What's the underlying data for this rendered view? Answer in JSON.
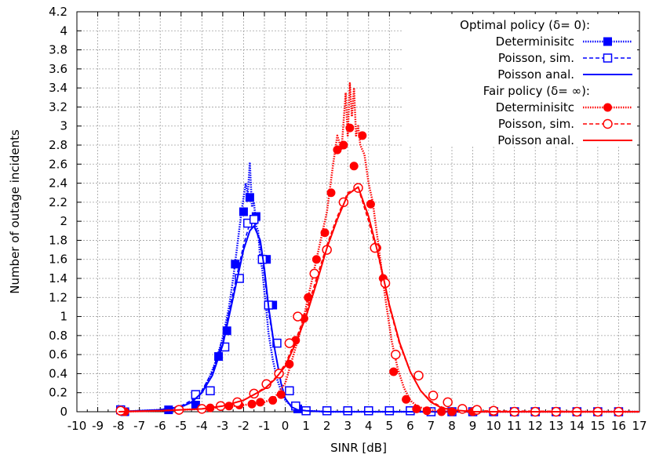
{
  "chart_data": {
    "type": "line",
    "title": "",
    "xlabel": "SINR [dB]",
    "ylabel": "Number of outage incidents",
    "xlim": [
      -10,
      17
    ],
    "ylim": [
      0,
      4.2
    ],
    "x_ticks": [
      -10,
      -9,
      -8,
      -7,
      -6,
      -5,
      -4,
      -3,
      -2,
      -1,
      0,
      1,
      2,
      3,
      4,
      5,
      6,
      7,
      8,
      9,
      10,
      11,
      12,
      13,
      14,
      15,
      16,
      17
    ],
    "y_ticks": [
      0,
      0.2,
      0.4,
      0.6,
      0.8,
      1,
      1.2,
      1.4,
      1.6,
      1.8,
      2,
      2.2,
      2.4,
      2.6,
      2.8,
      3,
      3.2,
      3.4,
      3.6,
      3.8,
      4,
      4.2
    ],
    "y_tick_labels": [
      "0",
      "0.2",
      "0.4",
      "0.6",
      "0.8",
      "1",
      "1.2",
      "1.4",
      "1.6",
      "1.8",
      "2",
      "2.2",
      "2.4",
      "2.6",
      "2.8",
      "3",
      "3.2",
      "3.4",
      "3.6",
      "3.8",
      "4",
      "4.2"
    ],
    "grid": true,
    "legend_position": "top-right",
    "legend_headers": [
      "Optimal policy (δ= 0):",
      "Fair policy (δ= ∞):"
    ],
    "series": [
      {
        "name": "Determinisitc",
        "group": "optimal",
        "color": "#0000ff",
        "line_style": "dotted",
        "marker": "filled-square",
        "x": [
          -7.7,
          -5.6,
          -4.3,
          -3.6,
          -3.2,
          -2.8,
          -2.4,
          -2.0,
          -1.7,
          -1.4,
          -0.9,
          -0.6,
          0.2,
          0.6,
          1.0,
          2.0,
          3.0,
          4.0,
          5.0,
          6.0,
          7.0,
          8.0,
          9.0,
          10.0,
          11.0,
          12.0,
          13.0,
          14.0,
          15.0,
          16.0
        ],
        "y": [
          0,
          0.02,
          0.07,
          0.22,
          0.58,
          0.85,
          1.55,
          2.1,
          2.25,
          2.05,
          1.6,
          1.12,
          0.22,
          0.03,
          0.01,
          0.01,
          0.01,
          0.01,
          0.01,
          0.01,
          0,
          0,
          0,
          0,
          0,
          0,
          0,
          0,
          0,
          0
        ],
        "line_x": [
          -8,
          -7,
          -6,
          -5,
          -4.5,
          -4,
          -3.6,
          -3.3,
          -3,
          -2.7,
          -2.5,
          -2.3,
          -2.1,
          -1.9,
          -1.8,
          -1.7,
          -1.6,
          -1.5,
          -1.4,
          -1.3,
          -1.2,
          -1.1,
          -1,
          -0.9,
          -0.8,
          -0.6,
          -0.4,
          -0.2,
          0,
          0.3,
          0.6,
          1,
          2,
          4,
          8,
          17
        ],
        "line_y": [
          0,
          0.01,
          0.02,
          0.05,
          0.1,
          0.2,
          0.38,
          0.55,
          0.78,
          1.1,
          1.4,
          1.75,
          2.1,
          2.4,
          2.28,
          2.62,
          2.15,
          2.2,
          1.95,
          1.9,
          1.6,
          1.5,
          1.25,
          1.05,
          0.82,
          0.55,
          0.35,
          0.22,
          0.12,
          0.06,
          0.03,
          0.01,
          0,
          0,
          0,
          0
        ]
      },
      {
        "name": "Poisson, sim.",
        "group": "optimal",
        "color": "#0000ff",
        "line_style": "dashed",
        "marker": "open-square",
        "x": [
          -7.9,
          -4.3,
          -3.6,
          -2.9,
          -2.2,
          -1.8,
          -1.5,
          -1.1,
          -0.8,
          -0.4,
          0.2,
          0.5,
          1.0,
          2.0,
          3.0,
          4.0,
          5.0,
          6.0,
          7.0,
          8.0,
          9.0,
          10.0,
          11.0,
          12.0,
          13.0,
          14.0,
          15.0,
          16.0
        ],
        "y": [
          0.02,
          0.18,
          0.22,
          0.68,
          1.4,
          1.98,
          2.02,
          1.6,
          1.12,
          0.72,
          0.22,
          0.06,
          0.01,
          0.01,
          0.01,
          0.01,
          0.01,
          0.01,
          0,
          0,
          0,
          0,
          0,
          0,
          0,
          0,
          0,
          0
        ],
        "line_x": [
          -8,
          -7,
          -6,
          -5,
          -4.5,
          -4,
          -3.5,
          -3,
          -2.5,
          -2,
          -1.7,
          -1.5,
          -1.2,
          -1,
          -0.8,
          -0.5,
          -0.2,
          0,
          0.3,
          0.6,
          1,
          2,
          4,
          8,
          17
        ],
        "line_y": [
          0,
          0.01,
          0.02,
          0.06,
          0.12,
          0.22,
          0.42,
          0.75,
          1.25,
          1.75,
          1.98,
          2.0,
          1.75,
          1.45,
          1.05,
          0.65,
          0.3,
          0.14,
          0.05,
          0.02,
          0.01,
          0,
          0,
          0,
          0
        ]
      },
      {
        "name": "Poisson anal.",
        "group": "optimal",
        "color": "#0000ff",
        "line_style": "solid",
        "marker": "none",
        "x": [
          -8,
          -7,
          -6,
          -5,
          -4.5,
          -4,
          -3.5,
          -3,
          -2.5,
          -2,
          -1.7,
          -1.5,
          -1.2,
          -1,
          -0.8,
          -0.5,
          -0.2,
          0,
          0.3,
          0.6,
          1,
          2,
          4,
          8,
          17
        ],
        "y": [
          0,
          0.01,
          0.02,
          0.05,
          0.1,
          0.2,
          0.38,
          0.7,
          1.2,
          1.7,
          1.9,
          1.95,
          1.8,
          1.5,
          1.1,
          0.65,
          0.3,
          0.14,
          0.05,
          0.02,
          0.01,
          0,
          0,
          0,
          0
        ]
      },
      {
        "name": "Determinisitc",
        "group": "fair",
        "color": "#ff0000",
        "line_style": "dotted",
        "marker": "filled-circle",
        "x": [
          -7.7,
          -3.6,
          -2.7,
          -2.2,
          -1.6,
          -1.2,
          -0.6,
          -0.2,
          0.2,
          0.5,
          0.9,
          1.1,
          1.5,
          1.9,
          2.2,
          2.5,
          2.8,
          3.1,
          3.3,
          3.7,
          4.1,
          4.4,
          4.7,
          5.2,
          5.8,
          6.3,
          6.8,
          7.5,
          8.0,
          9.0,
          10.0,
          11.0,
          12.0,
          13.0,
          14.0,
          15.0,
          16.0
        ],
        "y": [
          0,
          0.04,
          0.06,
          0.07,
          0.08,
          0.1,
          0.12,
          0.18,
          0.5,
          0.75,
          0.98,
          1.2,
          1.6,
          1.88,
          2.3,
          2.75,
          2.8,
          2.98,
          2.58,
          2.9,
          2.18,
          1.72,
          1.4,
          0.42,
          0.13,
          0.03,
          0.01,
          0,
          0,
          0,
          0,
          0,
          0,
          0,
          0,
          0,
          0
        ],
        "line_x": [
          -8,
          -6,
          -4,
          -3,
          -2,
          -1,
          -0.5,
          0,
          0.4,
          0.8,
          1.2,
          1.6,
          2,
          2.3,
          2.5,
          2.7,
          2.9,
          3,
          3.1,
          3.2,
          3.3,
          3.4,
          3.5,
          3.6,
          3.8,
          4,
          4.2,
          4.5,
          4.8,
          5.1,
          5.4,
          5.7,
          6,
          6.3,
          6.7,
          7.2,
          8,
          17
        ],
        "line_y": [
          0,
          0.01,
          0.03,
          0.05,
          0.07,
          0.1,
          0.15,
          0.3,
          0.6,
          0.9,
          1.3,
          1.7,
          2.1,
          2.6,
          2.9,
          2.75,
          3.35,
          2.9,
          3.45,
          3.1,
          3.4,
          2.9,
          3.0,
          2.8,
          2.7,
          2.4,
          2.2,
          1.7,
          1.2,
          0.75,
          0.45,
          0.25,
          0.12,
          0.06,
          0.03,
          0.01,
          0,
          0
        ]
      },
      {
        "name": "Poisson, sim.",
        "group": "fair",
        "color": "#ff0000",
        "line_style": "dashed",
        "marker": "open-circle",
        "x": [
          -7.9,
          -5.1,
          -4.0,
          -3.1,
          -2.3,
          -1.5,
          -0.9,
          -0.3,
          0.2,
          0.6,
          1.4,
          2.0,
          2.8,
          3.5,
          4.3,
          4.8,
          5.3,
          6.4,
          7.1,
          7.8,
          8.5,
          9.2,
          10.0,
          11.0,
          12.0,
          13.0,
          14.0,
          15.0,
          16.0
        ],
        "y": [
          0.01,
          0.02,
          0.03,
          0.06,
          0.1,
          0.19,
          0.29,
          0.4,
          0.72,
          1.0,
          1.45,
          1.7,
          2.2,
          2.35,
          1.72,
          1.35,
          0.6,
          0.38,
          0.17,
          0.1,
          0.03,
          0.02,
          0.01,
          0,
          0,
          0,
          0,
          0,
          0
        ],
        "line_x": [
          -8,
          -6,
          -4,
          -3,
          -2,
          -1,
          -0.5,
          0,
          0.5,
          1,
          1.5,
          2,
          2.5,
          3,
          3.5,
          4,
          4.5,
          5,
          5.5,
          6,
          6.5,
          7,
          7.5,
          8,
          9,
          17
        ],
        "line_y": [
          0,
          0.01,
          0.03,
          0.06,
          0.12,
          0.25,
          0.35,
          0.5,
          0.75,
          1.05,
          1.4,
          1.75,
          2.05,
          2.3,
          2.35,
          2.0,
          1.6,
          1.1,
          0.7,
          0.42,
          0.22,
          0.11,
          0.05,
          0.02,
          0.01,
          0
        ]
      },
      {
        "name": "Poisson anal.",
        "group": "fair",
        "color": "#ff0000",
        "line_style": "solid",
        "marker": "none",
        "x": [
          -8,
          -6,
          -4,
          -3,
          -2,
          -1,
          -0.5,
          0,
          0.5,
          1,
          1.5,
          2,
          2.5,
          3,
          3.5,
          4,
          4.5,
          5,
          5.5,
          6,
          6.5,
          7,
          7.5,
          8,
          9,
          17
        ],
        "y": [
          0,
          0.01,
          0.03,
          0.06,
          0.12,
          0.24,
          0.34,
          0.48,
          0.72,
          1.0,
          1.35,
          1.72,
          2.02,
          2.28,
          2.36,
          2.05,
          1.62,
          1.12,
          0.72,
          0.42,
          0.22,
          0.1,
          0.04,
          0.02,
          0,
          0
        ]
      }
    ]
  }
}
